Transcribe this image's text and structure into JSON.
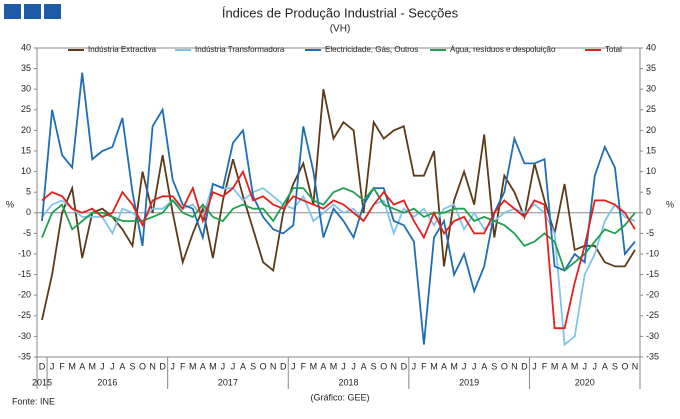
{
  "header": {
    "title": "Índices de Produção Industrial - Secções",
    "subtitle": "(VH)"
  },
  "footer": {
    "source": "Fonte: INE",
    "credit": "(Gráfico: GEE)"
  },
  "chart_data": {
    "type": "line",
    "y_label": "%",
    "y2_label": "%",
    "categories": [
      "D",
      "J",
      "F",
      "M",
      "A",
      "M",
      "J",
      "J",
      "A",
      "S",
      "O",
      "N",
      "D",
      "J",
      "F",
      "M",
      "A",
      "M",
      "J",
      "J",
      "A",
      "S",
      "O",
      "N",
      "D",
      "J",
      "F",
      "M",
      "A",
      "M",
      "J",
      "J",
      "A",
      "S",
      "O",
      "N",
      "D",
      "J",
      "F",
      "M",
      "A",
      "M",
      "J",
      "J",
      "A",
      "S",
      "O",
      "N",
      "D",
      "J",
      "F",
      "M",
      "A",
      "M",
      "J",
      "J",
      "A",
      "S",
      "O",
      "N"
    ],
    "groups": [
      {
        "name": "2015",
        "count": 1
      },
      {
        "name": "2016",
        "count": 12
      },
      {
        "name": "2017",
        "count": 12
      },
      {
        "name": "2018",
        "count": 12
      },
      {
        "name": "2019",
        "count": 12
      },
      {
        "name": "2020",
        "count": 11
      }
    ],
    "ylim": [
      -35,
      40
    ],
    "yticks": [
      -35,
      -30,
      -25,
      -20,
      -15,
      -10,
      -5,
      0,
      5,
      10,
      15,
      20,
      25,
      30,
      35,
      40
    ],
    "grid": false,
    "series": [
      {
        "name": "Indústria Extractiva",
        "color": "#5c3a17",
        "values": [
          -26,
          -15,
          0,
          6,
          -11,
          0,
          1,
          -1,
          -4,
          -8,
          10,
          0,
          14,
          0,
          -12,
          -5,
          1,
          -11,
          3,
          13,
          4,
          -4,
          -12,
          -14,
          0,
          7,
          12,
          2,
          30,
          18,
          22,
          20,
          0,
          22,
          18,
          20,
          21,
          9,
          9,
          15,
          -13,
          3,
          10,
          2,
          19,
          -6,
          9,
          5,
          -1,
          12,
          3,
          -5,
          7,
          -9,
          -8,
          -8,
          -12,
          -13,
          -13,
          -9
        ]
      },
      {
        "name": "Indústria Transformadora",
        "color": "#80c4ea",
        "values": [
          -1,
          2,
          3,
          1,
          -1,
          -1,
          -1,
          -5,
          1,
          0,
          -2,
          1,
          1,
          3,
          1,
          2,
          -1,
          7,
          6,
          6,
          3,
          5,
          6,
          4,
          2,
          1,
          4,
          -2,
          0,
          2,
          0,
          1,
          -2,
          2,
          3,
          -5,
          1,
          -1,
          1,
          -3,
          1,
          2,
          -4,
          0,
          -4,
          -2,
          0,
          1,
          0,
          2,
          0,
          -5,
          -32,
          -30,
          -15,
          -10,
          -2,
          2,
          -1,
          -2
        ]
      },
      {
        "name": "Electricidade, Gás, Outros",
        "color": "#1f6db4",
        "values": [
          -2,
          25,
          14,
          11,
          34,
          13,
          15,
          16,
          23,
          5,
          -8,
          21,
          25,
          8,
          2,
          1,
          -6,
          7,
          6,
          17,
          20,
          4,
          -1,
          -4,
          -5,
          -3,
          21,
          10,
          -6,
          1,
          -2,
          -6,
          2,
          6,
          6,
          -2,
          -3,
          -7,
          -32,
          -6,
          -2,
          -15,
          -10,
          -19,
          -13,
          0,
          5,
          18,
          12,
          12,
          13,
          -13,
          -14,
          -10,
          -12,
          9,
          16,
          11,
          -10,
          -7
        ]
      },
      {
        "name": "Água, resíduos e despoluição",
        "color": "#1ea050",
        "values": [
          -6,
          0,
          2,
          -4,
          -2,
          0,
          0,
          -1,
          -2,
          -2,
          -2,
          -1,
          0,
          3,
          0,
          -1,
          2,
          -1,
          -2,
          1,
          2,
          1,
          1,
          -2,
          2,
          6,
          6,
          3,
          2,
          5,
          6,
          5,
          3,
          6,
          2,
          1,
          0,
          1,
          -1,
          0,
          0,
          1,
          1,
          -2,
          -1,
          -2,
          -3,
          -5,
          -8,
          -7,
          -5,
          -7,
          -14,
          -12,
          -10,
          -7,
          -4,
          -5,
          -3,
          0
        ]
      },
      {
        "name": "Total",
        "color": "#e4201e",
        "values": [
          3,
          5,
          4,
          1,
          0,
          1,
          -1,
          0,
          5,
          2,
          -3,
          3,
          4,
          4,
          1,
          6,
          -2,
          5,
          4,
          6,
          10,
          3,
          4,
          2,
          1,
          4,
          3,
          2,
          1,
          3,
          2,
          0,
          -2,
          2,
          5,
          2,
          3,
          -2,
          -6,
          0,
          -5,
          -2,
          -1,
          -5,
          -5,
          0,
          3,
          1,
          -1,
          3,
          2,
          -28,
          -28,
          -17,
          -8,
          3,
          3,
          2,
          0,
          -4
        ]
      }
    ]
  }
}
